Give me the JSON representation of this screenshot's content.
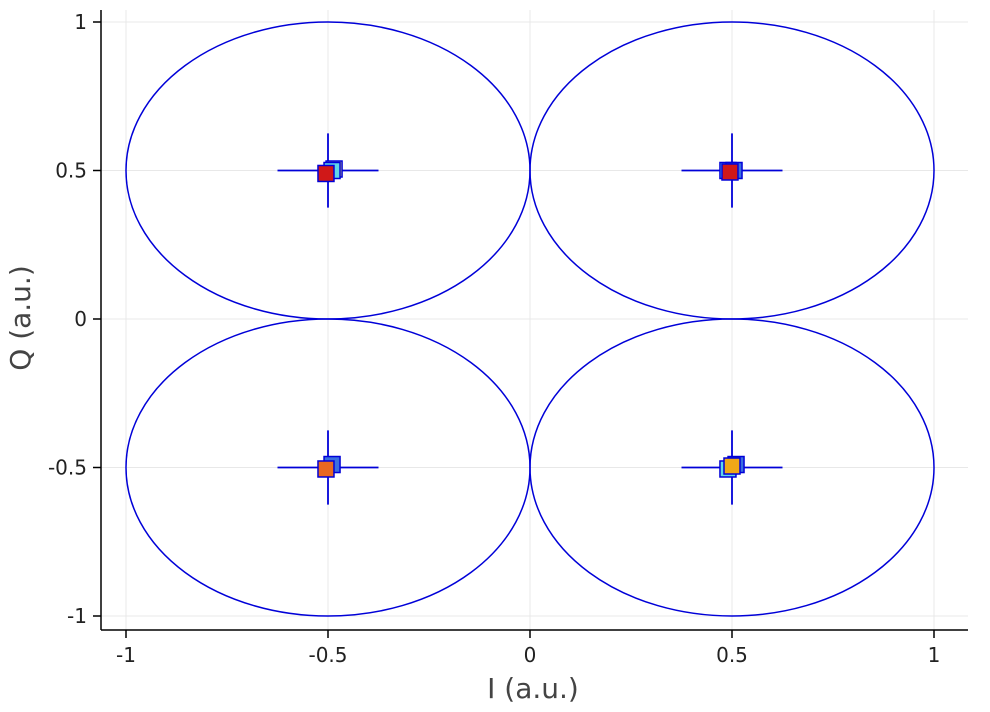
{
  "chart_data": {
    "type": "scatter",
    "title": "",
    "xlabel": "I (a.u.)",
    "ylabel": "Q (a.u.)",
    "xlim": [
      -1.05,
      1.08
    ],
    "ylim": [
      -1.05,
      1.05
    ],
    "grid": true,
    "x_ticks": [
      {
        "value": -1,
        "label": "-1"
      },
      {
        "value": -0.5,
        "label": "-0.5"
      },
      {
        "value": 0,
        "label": "0"
      },
      {
        "value": 0.5,
        "label": "0.5"
      },
      {
        "value": 1,
        "label": "1"
      }
    ],
    "y_ticks": [
      {
        "value": 1,
        "label": "1"
      },
      {
        "value": 0.5,
        "label": "0.5"
      },
      {
        "value": 0,
        "label": "0"
      },
      {
        "value": -0.5,
        "label": "-0.5"
      },
      {
        "value": -1,
        "label": "-1"
      }
    ],
    "constellation": [
      {
        "i": -0.5,
        "q": 0.5,
        "radius": 0.5,
        "cross_half_i": 0.125,
        "cross_half_q": 0.125
      },
      {
        "i": 0.5,
        "q": 0.5,
        "radius": 0.5,
        "cross_half_i": 0.125,
        "cross_half_q": 0.125
      },
      {
        "i": -0.5,
        "q": -0.5,
        "radius": 0.5,
        "cross_half_i": 0.125,
        "cross_half_q": 0.125
      },
      {
        "i": 0.5,
        "q": -0.5,
        "radius": 0.5,
        "cross_half_i": 0.125,
        "cross_half_q": 0.125
      }
    ],
    "samples": [
      {
        "i": -0.485,
        "q": 0.505,
        "color": "#f0e060"
      },
      {
        "i": -0.49,
        "q": 0.5,
        "color": "#60d8e8"
      },
      {
        "i": -0.505,
        "q": 0.49,
        "color": "#d01818"
      },
      {
        "i": 0.49,
        "q": 0.5,
        "color": "#60d8e8"
      },
      {
        "i": 0.505,
        "q": 0.5,
        "color": "#3a6ee0"
      },
      {
        "i": 0.495,
        "q": 0.495,
        "color": "#d01818"
      },
      {
        "i": -0.49,
        "q": -0.49,
        "color": "#3a6ee0"
      },
      {
        "i": -0.505,
        "q": -0.505,
        "color": "#e86820"
      },
      {
        "i": 0.51,
        "q": -0.49,
        "color": "#3a6ee0"
      },
      {
        "i": 0.49,
        "q": -0.505,
        "color": "#60d8e8"
      },
      {
        "i": 0.5,
        "q": -0.495,
        "color": "#f0a818"
      }
    ],
    "colors": {
      "reference": "#0000d8",
      "grid": "#e8e8e8",
      "axis": "#000000"
    }
  }
}
